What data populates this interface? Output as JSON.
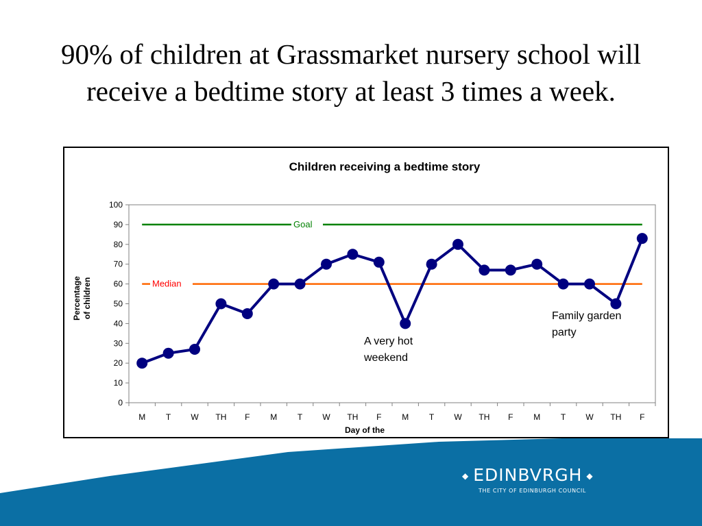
{
  "slide": {
    "title": "90% of children at Grassmarket nursery school will receive a bedtime story at least 3 times a week."
  },
  "logo": {
    "wordmark": "EDINBVRGH",
    "subtitle": "THE CITY OF EDINBURGH COUNCIL"
  },
  "colors": {
    "series": "#000080",
    "goal": "#008000",
    "median": "#ff6600",
    "median_label": "#ff0000",
    "footer_band": "#0b6fa4"
  },
  "chart_data": {
    "type": "line",
    "title": "Children receiving a bedtime story",
    "xlabel": "Day of the",
    "ylabel": "Percentage of children",
    "ylim": [
      0,
      100
    ],
    "yticks": [
      0,
      10,
      20,
      30,
      40,
      50,
      60,
      70,
      80,
      90,
      100
    ],
    "categories": [
      "M",
      "T",
      "W",
      "TH",
      "F",
      "M",
      "T",
      "W",
      "TH",
      "F",
      "M",
      "T",
      "W",
      "TH",
      "F",
      "M",
      "T",
      "W",
      "TH",
      "F"
    ],
    "series": [
      {
        "values": [
          20,
          25,
          27,
          50,
          45,
          60,
          60,
          70,
          75,
          71,
          40,
          70,
          80,
          67,
          67,
          70,
          60,
          60,
          50,
          83
        ]
      }
    ],
    "reference_lines": [
      {
        "label": "Goal",
        "value": 90
      },
      {
        "label": "Median",
        "value": 60
      }
    ],
    "annotations": [
      {
        "text": "A very hot weekend",
        "lines": [
          "A very hot",
          "weekend"
        ],
        "at_index": 10
      },
      {
        "text": "Family garden party",
        "lines": [
          "Family garden",
          "party"
        ],
        "at_index": 17
      }
    ],
    "grid": false,
    "legend": "none"
  }
}
